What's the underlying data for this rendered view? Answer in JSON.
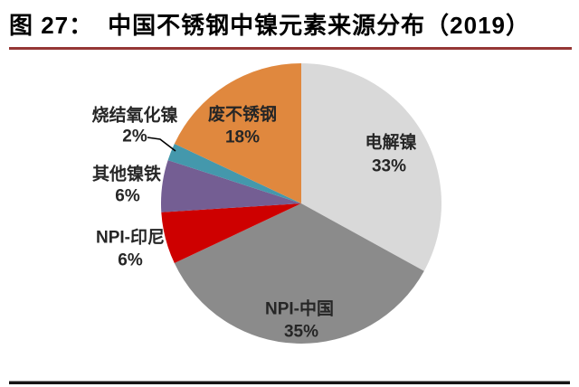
{
  "header": {
    "figure_label": "图 27：",
    "title": "中国不锈钢中镍元素来源分布（2019）"
  },
  "colors": {
    "title_text": "#000000",
    "title_rule": "#953735",
    "bottom_rule": "#161616",
    "label_text": "#262626",
    "leader_line": "#000000"
  },
  "chart_data": {
    "type": "pie",
    "title": "中国不锈钢中镍元素来源分布（2019）",
    "start_angle_deg": 0,
    "direction": "clockwise",
    "legend_position": "none",
    "center": [
      333,
      225
    ],
    "radius": 155,
    "categories": [
      "电解镍",
      "NPI-中国",
      "NPI-印尼",
      "其他镍铁",
      "烧结氧化镍",
      "废不锈钢"
    ],
    "values": [
      33,
      35,
      6,
      6,
      2,
      18
    ],
    "slices": [
      {
        "label": "电解镍",
        "value_pct": 33,
        "color": "#D9D9D9",
        "label_inside": true,
        "label_pos": [
          432,
          158
        ],
        "pct_pos": [
          430,
          184
        ]
      },
      {
        "label": "NPI-中国",
        "value_pct": 35,
        "color": "#8B8B8B",
        "label_inside": true,
        "label_pos": [
          331,
          342
        ],
        "pct_pos": [
          333,
          367
        ]
      },
      {
        "label": "NPI-印尼",
        "value_pct": 6,
        "color": "#CE0000",
        "label_inside": false,
        "label_pos": [
          144,
          263
        ],
        "pct_pos": [
          144,
          288
        ]
      },
      {
        "label": "其他镍铁",
        "value_pct": 6,
        "color": "#745E93",
        "label_inside": false,
        "label_pos": [
          140,
          193
        ],
        "pct_pos": [
          141,
          217
        ]
      },
      {
        "label": "烧结氧化镍",
        "value_pct": 2,
        "color": "#4498AC",
        "label_inside": false,
        "label_pos": [
          149,
          128
        ],
        "pct_pos": [
          149,
          151
        ],
        "leader": [
          [
            163,
            152
          ],
          [
            177,
            154
          ],
          [
            194,
            167
          ]
        ]
      },
      {
        "label": "废不锈钢",
        "value_pct": 18,
        "color": "#E0883E",
        "label_inside": true,
        "label_pos": [
          268,
          127
        ],
        "pct_pos": [
          268,
          152
        ]
      }
    ]
  }
}
